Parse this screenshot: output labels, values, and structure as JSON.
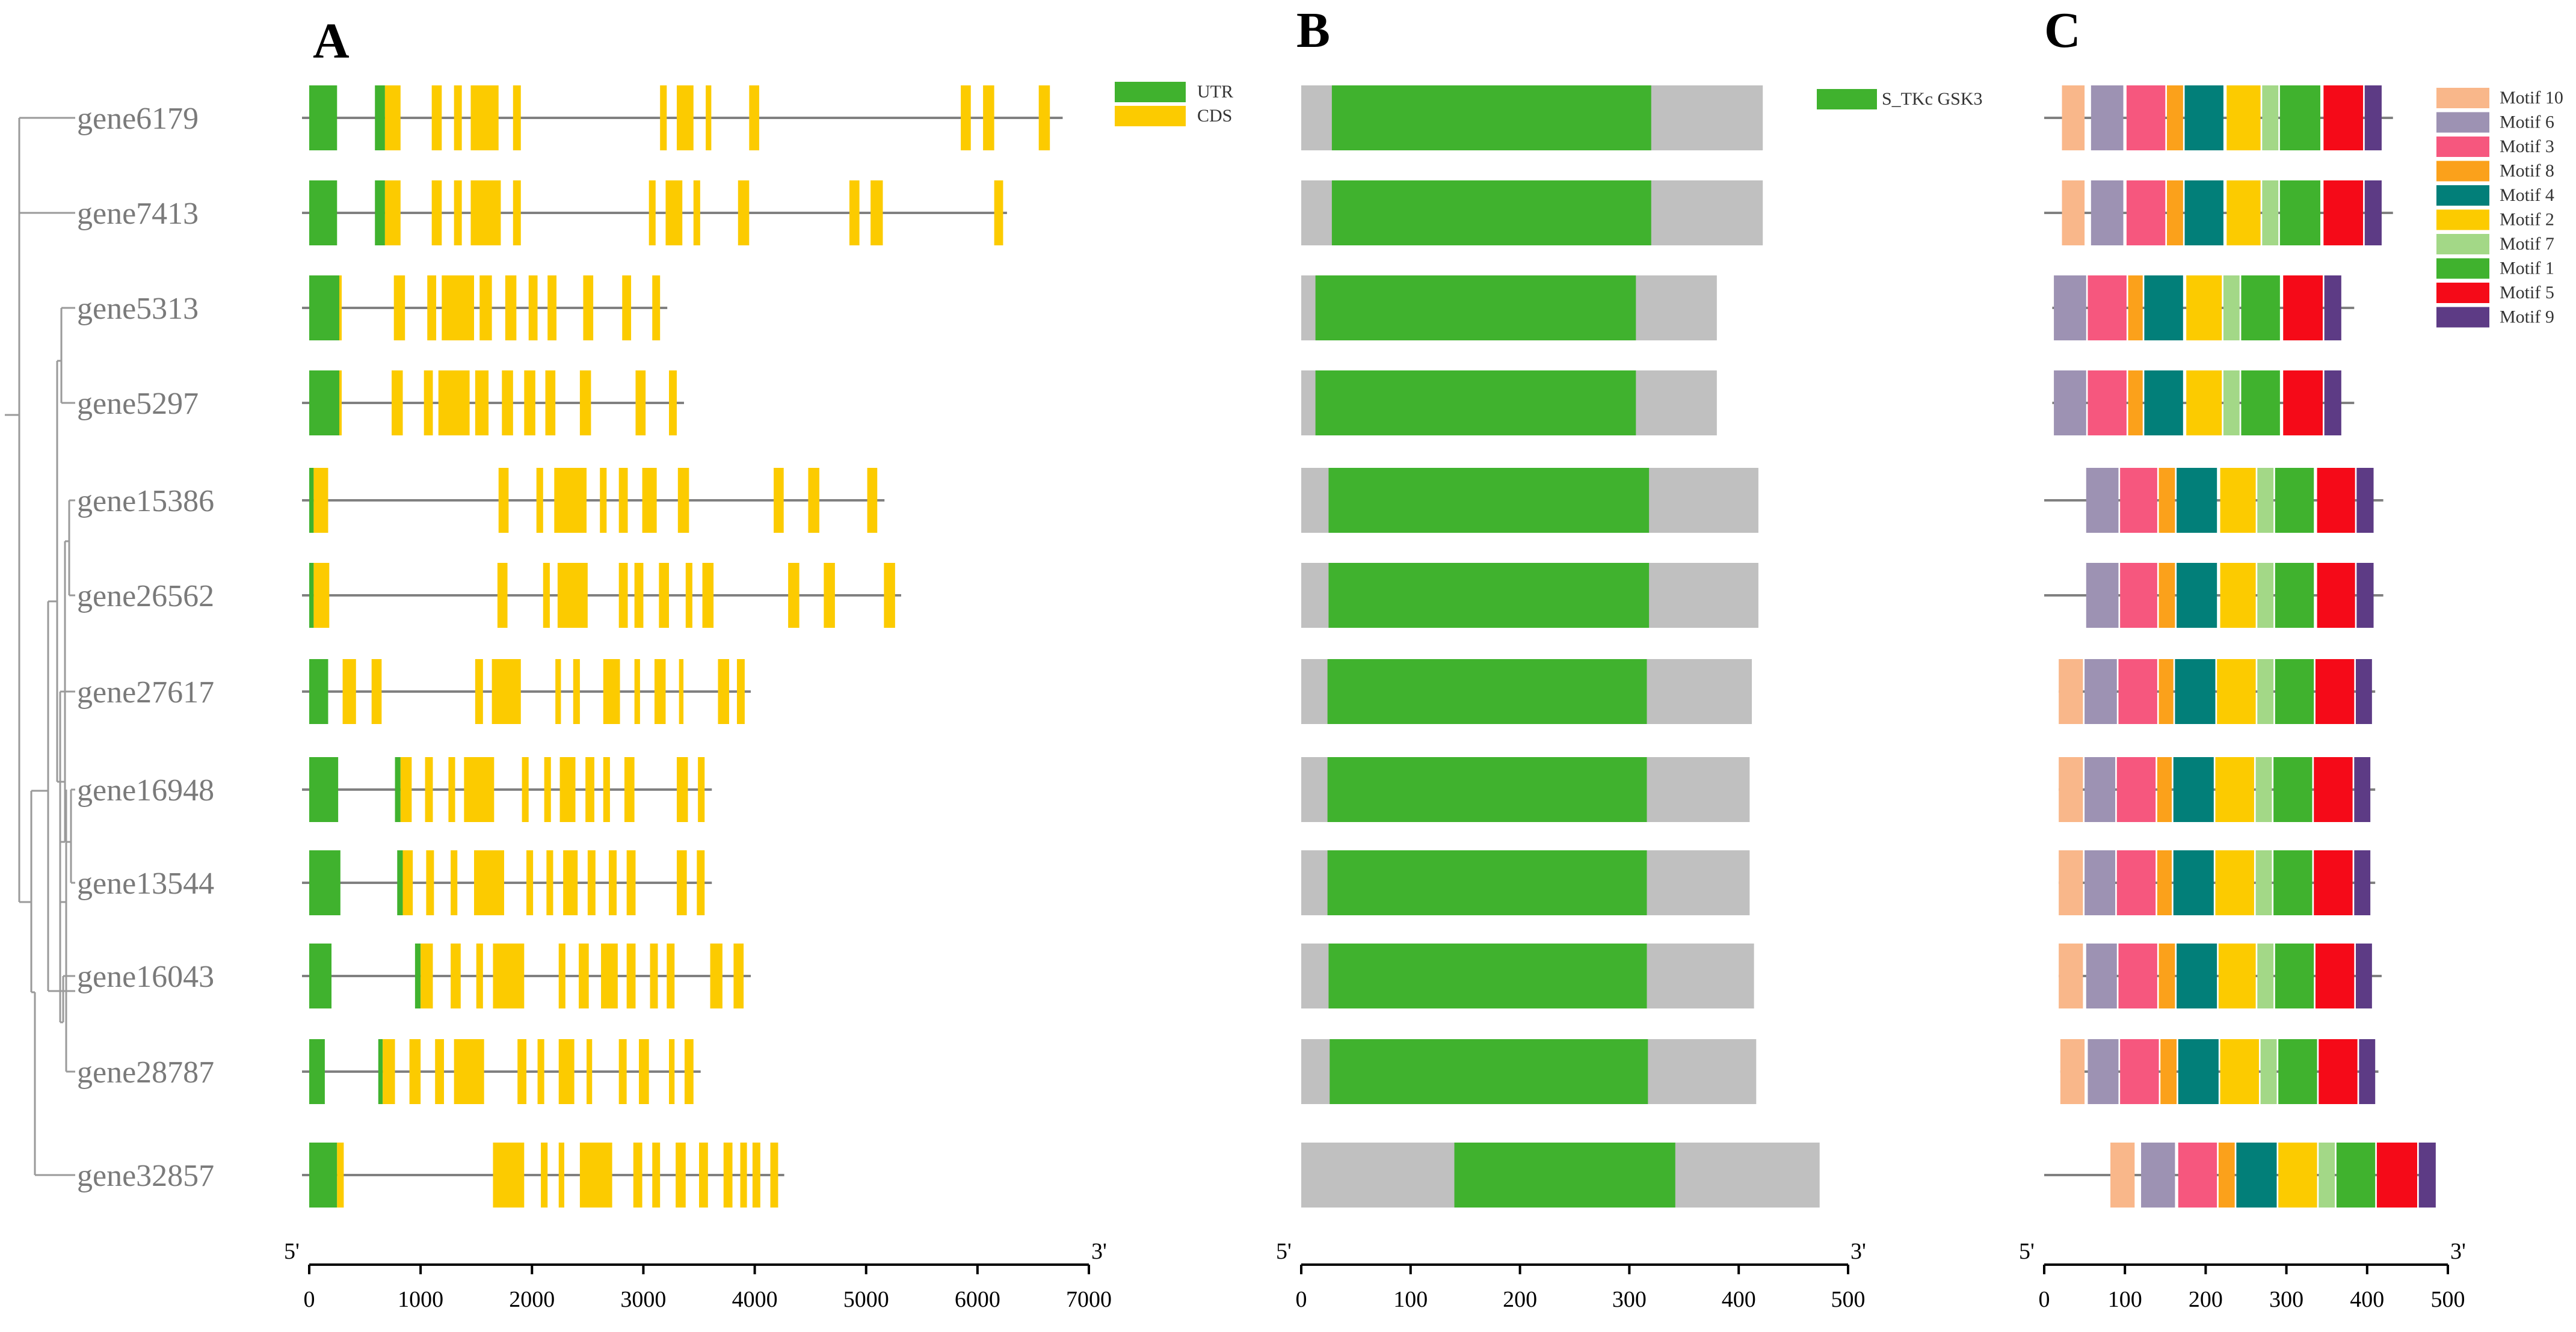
{
  "panels": {
    "a": "A",
    "b": "B",
    "c": "C"
  },
  "genes": [
    {
      "name": "gene6179",
      "gene_len": 6700,
      "protein_len": 422
    },
    {
      "name": "gene7413",
      "gene_len": 6200,
      "protein_len": 422
    },
    {
      "name": "gene5313",
      "gene_len": 3150,
      "protein_len": 380
    },
    {
      "name": "gene5297",
      "gene_len": 3300,
      "protein_len": 380
    },
    {
      "name": "gene15386",
      "gene_len": 5100,
      "protein_len": 418
    },
    {
      "name": "gene26562",
      "gene_len": 5250,
      "protein_len": 418
    },
    {
      "name": "gene27617",
      "gene_len": 3900,
      "protein_len": 412
    },
    {
      "name": "gene16948",
      "gene_len": 3550,
      "protein_len": 410
    },
    {
      "name": "gene13544",
      "gene_len": 3550,
      "protein_len": 410
    },
    {
      "name": "gene16043",
      "gene_len": 3900,
      "protein_len": 414
    },
    {
      "name": "gene28787",
      "gene_len": 3450,
      "protein_len": 416
    },
    {
      "name": "gene32857",
      "gene_len": 4200,
      "protein_len": 474
    }
  ],
  "legend_a": [
    {
      "label": "UTR",
      "color": "#40b22e"
    },
    {
      "label": "CDS",
      "color": "#fccb00"
    }
  ],
  "legend_b": [
    {
      "label": "S_TKc GSK3",
      "color": "#40b22e"
    }
  ],
  "legend_c": [
    {
      "label": "Motif 10",
      "color": "#f9b78a"
    },
    {
      "label": "Motif 6",
      "color": "#9d92b3"
    },
    {
      "label": "Motif 3",
      "color": "#f6577e"
    },
    {
      "label": "Motif 8",
      "color": "#fba11b"
    },
    {
      "label": "Motif 4",
      "color": "#027f79"
    },
    {
      "label": "Motif 2",
      "color": "#fccb00"
    },
    {
      "label": "Motif 7",
      "color": "#a3d887"
    },
    {
      "label": "Motif 1",
      "color": "#40b22e"
    },
    {
      "label": "Motif 5",
      "color": "#f50a18"
    },
    {
      "label": "Motif 9",
      "color": "#5d3b85"
    }
  ],
  "axis_a": {
    "start_label": "5'",
    "end_label": "3'",
    "ticks": [
      "0",
      "1000",
      "2000",
      "3000",
      "4000",
      "5000",
      "6000",
      "7000"
    ]
  },
  "axis_b": {
    "start_label": "5'",
    "end_label": "3'",
    "ticks": [
      "0",
      "100",
      "200",
      "300",
      "400",
      "500"
    ]
  },
  "axis_c": {
    "start_label": "5'",
    "end_label": "3'",
    "ticks": [
      "0",
      "100",
      "200",
      "300",
      "400",
      "500"
    ]
  },
  "colors": {
    "utr": "#40b22e",
    "cds": "#fccb00",
    "domain": "#40b22e",
    "protein_bg": "#c0c0c0",
    "intron": "#808080"
  }
}
